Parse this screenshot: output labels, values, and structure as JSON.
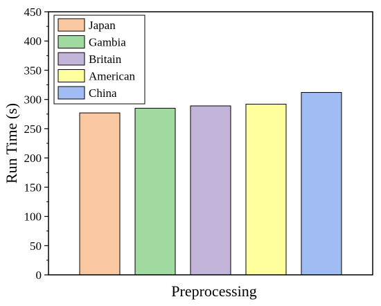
{
  "chart_data": {
    "type": "bar",
    "title": "",
    "xlabel": "Preprocessing",
    "ylabel": "Run Time (s)",
    "ylim": [
      0,
      450
    ],
    "yticks": [
      0,
      50,
      100,
      150,
      200,
      250,
      300,
      350,
      400,
      450
    ],
    "grid": false,
    "legend_position": "top-left",
    "series": [
      {
        "name": "Japan",
        "values": [
          277
        ],
        "color": "#FAC8A0"
      },
      {
        "name": "Gambia",
        "values": [
          285
        ],
        "color": "#A0DAA0"
      },
      {
        "name": "Britain",
        "values": [
          289
        ],
        "color": "#C3B4D9"
      },
      {
        "name": "American",
        "values": [
          292
        ],
        "color": "#FFFF9E"
      },
      {
        "name": "China",
        "values": [
          312
        ],
        "color": "#A0BCF2"
      }
    ]
  }
}
